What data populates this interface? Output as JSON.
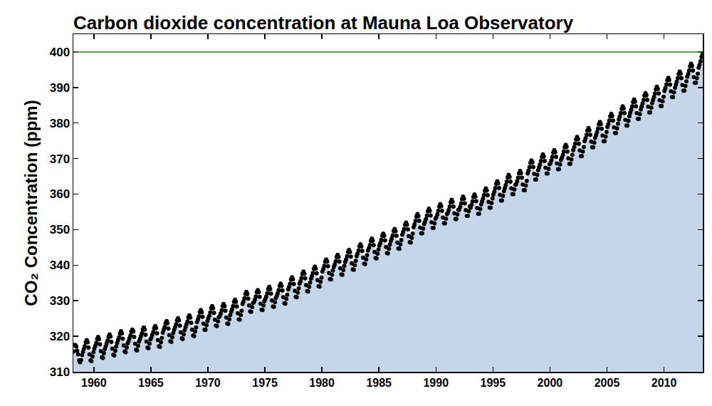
{
  "chart_data": {
    "type": "area",
    "title": "Carbon dioxide concentration at Mauna Loa Observatory",
    "y_label": "CO₂ Concentration (ppm)",
    "color": "#000000",
    "marker": "circle",
    "grid": false,
    "xlim": [
      1958.2,
      2013.4
    ],
    "ylim": [
      310,
      405
    ],
    "xticks": [
      1960,
      1965,
      1970,
      1975,
      1980,
      1985,
      1990,
      1995,
      2000,
      2005,
      2010
    ],
    "yticks": [
      310,
      320,
      330,
      340,
      350,
      360,
      370,
      380,
      390,
      400
    ],
    "hline": 400,
    "x": [
      1958.21,
      1958.29,
      1958.38,
      1958.46,
      1958.54,
      1958.62,
      1958.71,
      1958.79,
      1958.88,
      1958.96,
      1959.04,
      1959.12,
      1959.21,
      1959.29,
      1959.38,
      1959.46,
      1959.54,
      1959.62,
      1959.71,
      1959.79,
      1959.88,
      1959.96,
      1960.04,
      1960.12,
      1960.21,
      1960.29,
      1960.38,
      1960.46,
      1960.54,
      1960.62,
      1960.71,
      1960.79,
      1960.88,
      1960.96,
      1961.04,
      1961.12,
      1961.21,
      1961.29,
      1961.38,
      1961.46,
      1961.54,
      1961.62,
      1961.71,
      1961.79,
      1961.88,
      1961.96,
      1962.04,
      1962.12,
      1962.21,
      1962.29,
      1962.38,
      1962.46,
      1962.54,
      1962.62,
      1962.71,
      1962.79,
      1962.88,
      1962.96,
      1963.04,
      1963.12,
      1963.21,
      1963.29,
      1963.38,
      1963.46,
      1963.54,
      1963.62,
      1963.71,
      1963.79,
      1963.88,
      1963.96,
      1964.04,
      1964.12,
      1964.21,
      1964.29,
      1964.38,
      1964.46,
      1964.54,
      1964.62,
      1964.71,
      1964.79,
      1964.88,
      1964.96,
      1965.04,
      1965.12,
      1965.21,
      1965.29,
      1965.38,
      1965.46,
      1965.54,
      1965.62,
      1965.71,
      1965.79,
      1965.88,
      1965.96,
      1966.04,
      1966.12,
      1966.21,
      1966.29,
      1966.38,
      1966.46,
      1966.54,
      1966.62,
      1966.71,
      1966.79,
      1966.88,
      1966.96,
      1967.04,
      1967.12,
      1967.21,
      1967.29,
      1967.38,
      1967.46,
      1967.54,
      1967.62,
      1967.71,
      1967.79,
      1967.88,
      1967.96,
      1968.04,
      1968.12,
      1968.21,
      1968.29,
      1968.38,
      1968.46,
      1968.54,
      1968.62,
      1968.71,
      1968.79,
      1968.88,
      1968.96,
      1969.04,
      1969.12,
      1969.21,
      1969.29,
      1969.38,
      1969.46,
      1969.54,
      1969.62,
      1969.71,
      1969.79,
      1969.88,
      1969.96,
      1970.04,
      1970.12,
      1970.21,
      1970.29,
      1970.38,
      1970.46,
      1970.54,
      1970.62,
      1970.71,
      1970.79,
      1970.88,
      1970.96,
      1971.04,
      1971.12,
      1971.21,
      1971.29,
      1971.38,
      1971.46,
      1971.54,
      1971.62,
      1971.71,
      1971.79,
      1971.88,
      1971.96,
      1972.04,
      1972.12,
      1972.21,
      1972.29,
      1972.38,
      1972.46,
      1972.54,
      1972.62,
      1972.71,
      1972.79,
      1972.88,
      1972.96,
      1973.04,
      1973.12,
      1973.21,
      1973.29,
      1973.38,
      1973.46,
      1973.54,
      1973.62,
      1973.71,
      1973.79,
      1973.88,
      1973.96,
      1974.04,
      1974.12,
      1974.21,
      1974.29,
      1974.38,
      1974.46,
      1974.54,
      1974.62,
      1974.71,
      1974.79,
      1974.88,
      1974.96,
      1975.04,
      1975.12,
      1975.21,
      1975.29,
      1975.38,
      1975.46,
      1975.54,
      1975.62,
      1975.71,
      1975.79,
      1975.88,
      1975.96,
      1976.04,
      1976.12,
      1976.21,
      1976.29,
      1976.38,
      1976.46,
      1976.54,
      1976.62,
      1976.71,
      1976.79,
      1976.88,
      1976.96,
      1977.04,
      1977.12,
      1977.21,
      1977.29,
      1977.38,
      1977.46,
      1977.54,
      1977.62,
      1977.71,
      1977.79,
      1977.88,
      1977.96,
      1978.04,
      1978.12,
      1978.21,
      1978.29,
      1978.38,
      1978.46,
      1978.54,
      1978.62,
      1978.71,
      1978.79,
      1978.88,
      1978.96,
      1979.04,
      1979.12,
      1979.21,
      1979.29,
      1979.38,
      1979.46,
      1979.54,
      1979.62,
      1979.71,
      1979.79,
      1979.88,
      1979.96,
      1980.04,
      1980.12,
      1980.21,
      1980.29,
      1980.38,
      1980.46,
      1980.54,
      1980.62,
      1980.71,
      1980.79,
      1980.88,
      1980.96,
      1981.04,
      1981.12,
      1981.21,
      1981.29,
      1981.38,
      1981.46,
      1981.54,
      1981.62,
      1981.71,
      1981.79,
      1981.88,
      1981.96,
      1982.04,
      1982.12,
      1982.21,
      1982.29,
      1982.38,
      1982.46,
      1982.54,
      1982.62,
      1982.71,
      1982.79,
      1982.88,
      1982.96,
      1983.04,
      1983.12,
      1983.21,
      1983.29,
      1983.38,
      1983.46,
      1983.54,
      1983.62,
      1983.71,
      1983.79,
      1983.88,
      1983.96,
      1984.04,
      1984.12,
      1984.21,
      1984.29,
      1984.38,
      1984.46,
      1984.54,
      1984.62,
      1984.71,
      1984.79,
      1984.88,
      1984.96,
      1985.04,
      1985.12,
      1985.21,
      1985.29,
      1985.38,
      1985.46,
      1985.54,
      1985.62,
      1985.71,
      1985.79,
      1985.88,
      1985.96,
      1986.04,
      1986.12,
      1986.21,
      1986.29,
      1986.38,
      1986.46,
      1986.54,
      1986.62,
      1986.71,
      1986.79,
      1986.88,
      1986.96,
      1987.04,
      1987.12,
      1987.21,
      1987.29,
      1987.38,
      1987.46,
      1987.54,
      1987.62,
      1987.71,
      1987.79,
      1987.88,
      1987.96,
      1988.04,
      1988.12,
      1988.21,
      1988.29,
      1988.38,
      1988.46,
      1988.54,
      1988.62,
      1988.71,
      1988.79,
      1988.88,
      1988.96,
      1989.04,
      1989.12,
      1989.21,
      1989.29,
      1989.38,
      1989.46,
      1989.54,
      1989.62,
      1989.71,
      1989.79,
      1989.88,
      1989.96,
      1990.04,
      1990.12,
      1990.21,
      1990.29,
      1990.38,
      1990.46,
      1990.54,
      1990.62,
      1990.71,
      1990.79,
      1990.88,
      1990.96,
      1991.04,
      1991.12,
      1991.21,
      1991.29,
      1991.38,
      1991.46,
      1991.54,
      1991.62,
      1991.71,
      1991.79,
      1991.88,
      1991.96,
      1992.04,
      1992.12,
      1992.21,
      1992.29,
      1992.38,
      1992.46,
      1992.54,
      1992.62,
      1992.71,
      1992.79,
      1992.88,
      1992.96,
      1993.04,
      1993.12,
      1993.21,
      1993.29,
      1993.38,
      1993.46,
      1993.54,
      1993.62,
      1993.71,
      1993.79,
      1993.88,
      1993.96,
      1994.04,
      1994.12,
      1994.21,
      1994.29,
      1994.38,
      1994.46,
      1994.54,
      1994.62,
      1994.71,
      1994.79,
      1994.88,
      1994.96,
      1995.04,
      1995.12,
      1995.21,
      1995.29,
      1995.38,
      1995.46,
      1995.54,
      1995.62,
      1995.71,
      1995.79,
      1995.88,
      1995.96,
      1996.04,
      1996.12,
      1996.21,
      1996.29,
      1996.38,
      1996.46,
      1996.54,
      1996.62,
      1996.71,
      1996.79,
      1996.88,
      1996.96,
      1997.04,
      1997.12,
      1997.21,
      1997.29,
      1997.38,
      1997.46,
      1997.54,
      1997.62,
      1997.71,
      1997.79,
      1997.88,
      1997.96,
      1998.04,
      1998.12,
      1998.21,
      1998.29,
      1998.38,
      1998.46,
      1998.54,
      1998.62,
      1998.71,
      1998.79,
      1998.88,
      1998.96,
      1999.04,
      1999.12,
      1999.21,
      1999.29,
      1999.38,
      1999.46,
      1999.54,
      1999.62,
      1999.71,
      1999.79,
      1999.88,
      1999.96,
      2000.04,
      2000.12,
      2000.21,
      2000.29,
      2000.38,
      2000.46,
      2000.54,
      2000.62,
      2000.71,
      2000.79,
      2000.88,
      2000.96,
      2001.04,
      2001.12,
      2001.21,
      2001.29,
      2001.38,
      2001.46,
      2001.54,
      2001.62,
      2001.71,
      2001.79,
      2001.88,
      2001.96,
      2002.04,
      2002.12,
      2002.21,
      2002.29,
      2002.38,
      2002.46,
      2002.54,
      2002.62,
      2002.71,
      2002.79,
      2002.88,
      2002.96,
      2003.04,
      2003.12,
      2003.21,
      2003.29,
      2003.38,
      2003.46,
      2003.54,
      2003.62,
      2003.71,
      2003.79,
      2003.88,
      2003.96,
      2004.04,
      2004.12,
      2004.21,
      2004.29,
      2004.38,
      2004.46,
      2004.54,
      2004.62,
      2004.71,
      2004.79,
      2004.88,
      2004.96,
      2005.04,
      2005.12,
      2005.21,
      2005.29,
      2005.38,
      2005.46,
      2005.54,
      2005.62,
      2005.71,
      2005.79,
      2005.88,
      2005.96,
      2006.04,
      2006.12,
      2006.21,
      2006.29,
      2006.38,
      2006.46,
      2006.54,
      2006.62,
      2006.71,
      2006.79,
      2006.88,
      2006.96,
      2007.04,
      2007.12,
      2007.21,
      2007.29,
      2007.38,
      2007.46,
      2007.54,
      2007.62,
      2007.71,
      2007.79,
      2007.88,
      2007.96,
      2008.04,
      2008.12,
      2008.21,
      2008.29,
      2008.38,
      2008.46,
      2008.54,
      2008.62,
      2008.71,
      2008.79,
      2008.88,
      2008.96,
      2009.04,
      2009.12,
      2009.21,
      2009.29,
      2009.38,
      2009.46,
      2009.54,
      2009.62,
      2009.71,
      2009.79,
      2009.88,
      2009.96,
      2010.04,
      2010.12,
      2010.21,
      2010.29,
      2010.38,
      2010.46,
      2010.54,
      2010.62,
      2010.71,
      2010.79,
      2010.88,
      2010.96,
      2011.04,
      2011.12,
      2011.21,
      2011.29,
      2011.38,
      2011.46,
      2011.54,
      2011.62,
      2011.71,
      2011.79,
      2011.88,
      2011.96,
      2012.04,
      2012.12,
      2012.21,
      2012.29,
      2012.38,
      2012.46,
      2012.54,
      2012.62,
      2012.71,
      2012.79,
      2012.88,
      2012.96,
      2013.04,
      2013.12,
      2013.21,
      2013.29,
      2013.38
    ],
    "values": [
      315.7,
      317.5,
      317.5,
      317.1,
      315.9,
      314.9,
      313.2,
      312.7,
      313.3,
      314.7,
      315.6,
      316.4,
      317.2,
      318.3,
      318.9,
      318.3,
      316.8,
      314.9,
      313.2,
      313.0,
      314.3,
      315.5,
      316.5,
      317.3,
      318.1,
      319.2,
      319.8,
      319.2,
      317.7,
      315.8,
      314.1,
      313.9,
      315.2,
      316.4,
      317.2,
      318.0,
      318.8,
      319.9,
      320.5,
      319.9,
      318.4,
      316.5,
      314.8,
      314.6,
      315.9,
      317.1,
      318.1,
      318.9,
      319.7,
      320.8,
      321.4,
      320.8,
      319.3,
      317.4,
      315.7,
      315.5,
      316.8,
      318.0,
      318.6,
      319.4,
      320.2,
      321.3,
      321.9,
      321.3,
      319.8,
      317.9,
      316.2,
      316.0,
      317.3,
      318.5,
      319.2,
      320.0,
      320.8,
      321.9,
      322.5,
      321.9,
      320.4,
      318.5,
      316.8,
      316.6,
      317.9,
      319.1,
      319.6,
      320.4,
      321.2,
      322.3,
      322.9,
      322.3,
      320.8,
      318.9,
      317.2,
      317.0,
      318.3,
      319.5,
      321.0,
      321.8,
      322.6,
      323.7,
      324.3,
      323.7,
      322.2,
      320.3,
      318.6,
      318.4,
      319.7,
      320.9,
      321.8,
      322.6,
      323.4,
      324.5,
      325.1,
      324.5,
      323.0,
      321.1,
      319.4,
      319.2,
      320.5,
      321.7,
      322.6,
      323.4,
      324.2,
      325.3,
      325.9,
      325.3,
      323.8,
      321.9,
      320.2,
      320.0,
      321.3,
      322.5,
      324.0,
      324.7,
      325.6,
      326.8,
      327.4,
      326.8,
      325.5,
      323.6,
      321.9,
      321.8,
      323.1,
      324.3,
      325.1,
      325.8,
      326.7,
      327.9,
      328.5,
      327.9,
      326.6,
      324.7,
      323.0,
      322.9,
      324.2,
      325.4,
      325.7,
      326.4,
      327.3,
      328.5,
      329.1,
      328.5,
      327.2,
      325.3,
      323.6,
      323.5,
      324.8,
      326.0,
      326.9,
      327.6,
      328.5,
      329.7,
      330.3,
      329.7,
      328.4,
      326.5,
      324.8,
      324.7,
      326.0,
      327.2,
      329.1,
      329.8,
      330.7,
      331.9,
      332.5,
      331.9,
      330.6,
      328.7,
      327.0,
      326.9,
      328.2,
      329.4,
      329.6,
      330.3,
      331.2,
      332.4,
      333.0,
      332.4,
      331.1,
      329.2,
      327.5,
      327.4,
      328.7,
      329.9,
      330.5,
      331.2,
      332.1,
      333.3,
      333.9,
      333.3,
      332.0,
      330.1,
      328.4,
      328.3,
      329.6,
      330.8,
      331.4,
      332.1,
      333.0,
      334.2,
      334.8,
      334.2,
      332.9,
      331.0,
      329.3,
      329.2,
      330.5,
      331.7,
      333.2,
      333.9,
      334.8,
      336.0,
      336.6,
      336.0,
      334.7,
      332.8,
      331.1,
      331.0,
      332.3,
      333.5,
      334.8,
      335.5,
      336.4,
      337.6,
      338.2,
      337.6,
      336.3,
      334.4,
      332.7,
      332.6,
      333.9,
      335.1,
      336.2,
      336.9,
      337.8,
      339.0,
      339.6,
      339.0,
      337.7,
      335.8,
      334.1,
      334.0,
      335.3,
      336.5,
      338.2,
      338.9,
      339.8,
      341.0,
      341.6,
      341.0,
      339.7,
      337.8,
      336.1,
      336.0,
      337.3,
      338.5,
      339.5,
      340.2,
      341.1,
      342.3,
      342.9,
      342.3,
      341.0,
      339.1,
      337.4,
      337.3,
      338.6,
      339.8,
      340.9,
      341.6,
      342.5,
      343.7,
      344.3,
      343.7,
      342.4,
      340.5,
      338.8,
      338.7,
      340.0,
      341.2,
      342.5,
      343.2,
      344.1,
      345.3,
      345.9,
      345.3,
      344.0,
      342.1,
      340.4,
      340.3,
      341.6,
      342.8,
      344.1,
      344.8,
      345.7,
      346.9,
      347.5,
      346.9,
      345.6,
      343.7,
      342.0,
      341.9,
      343.2,
      344.4,
      345.5,
      346.2,
      347.1,
      348.3,
      348.9,
      348.3,
      347.0,
      345.1,
      343.4,
      343.3,
      344.6,
      345.8,
      346.8,
      347.5,
      348.4,
      349.6,
      350.2,
      349.6,
      348.3,
      346.4,
      344.7,
      344.6,
      345.9,
      347.1,
      348.6,
      349.3,
      350.2,
      351.4,
      352.0,
      351.4,
      350.1,
      348.2,
      346.5,
      346.4,
      347.7,
      348.9,
      350.7,
      351.5,
      352.5,
      353.7,
      354.4,
      353.8,
      352.5,
      350.6,
      349.0,
      349.0,
      350.3,
      351.6,
      352.2,
      353.0,
      354.0,
      355.2,
      355.9,
      355.3,
      354.0,
      352.1,
      350.5,
      350.5,
      351.8,
      353.1,
      353.5,
      354.3,
      355.3,
      356.5,
      357.2,
      356.6,
      355.3,
      353.4,
      351.8,
      351.8,
      353.1,
      354.4,
      354.7,
      355.5,
      356.5,
      357.7,
      358.4,
      357.8,
      356.5,
      354.6,
      353.0,
      353.0,
      354.3,
      355.6,
      355.6,
      356.4,
      357.4,
      358.6,
      359.3,
      358.7,
      357.4,
      355.5,
      353.9,
      353.9,
      355.2,
      356.5,
      356.2,
      357.0,
      358.0,
      359.2,
      359.9,
      359.3,
      358.0,
      356.1,
      354.5,
      354.5,
      355.8,
      357.1,
      357.9,
      358.7,
      359.7,
      360.9,
      361.6,
      361.0,
      359.7,
      357.8,
      356.2,
      356.2,
      357.5,
      358.8,
      359.9,
      360.7,
      361.7,
      362.9,
      363.6,
      363.0,
      361.7,
      359.8,
      358.2,
      358.2,
      359.5,
      360.8,
      361.7,
      362.5,
      363.5,
      364.7,
      365.4,
      364.8,
      363.5,
      361.6,
      360.0,
      360.0,
      361.3,
      362.6,
      362.8,
      363.6,
      364.6,
      365.8,
      366.5,
      365.9,
      364.6,
      362.7,
      361.1,
      361.1,
      362.4,
      363.7,
      365.8,
      366.6,
      367.6,
      368.8,
      369.5,
      368.9,
      367.6,
      365.7,
      364.1,
      364.1,
      365.4,
      366.7,
      367.5,
      368.3,
      369.3,
      370.5,
      371.2,
      370.6,
      369.3,
      367.4,
      365.8,
      365.8,
      367.1,
      368.4,
      368.7,
      369.5,
      370.5,
      371.7,
      372.4,
      371.8,
      370.5,
      368.6,
      367.0,
      367.0,
      368.3,
      369.6,
      370.2,
      371.0,
      372.0,
      373.2,
      373.9,
      373.3,
      372.0,
      370.1,
      368.5,
      368.5,
      369.8,
      371.1,
      372.4,
      373.2,
      374.2,
      375.4,
      376.1,
      375.5,
      374.2,
      372.3,
      370.7,
      370.7,
      372.0,
      373.3,
      374.9,
      375.7,
      376.7,
      377.9,
      378.6,
      378.0,
      376.7,
      374.8,
      373.2,
      373.2,
      374.5,
      375.8,
      376.6,
      377.4,
      378.4,
      379.6,
      380.3,
      379.7,
      378.4,
      376.5,
      374.9,
      374.9,
      376.2,
      377.5,
      378.9,
      379.7,
      380.7,
      381.9,
      382.6,
      382.0,
      380.7,
      378.8,
      377.2,
      377.2,
      378.5,
      379.8,
      381.0,
      381.8,
      382.8,
      384.0,
      384.7,
      384.1,
      382.8,
      380.9,
      379.3,
      379.3,
      380.6,
      381.9,
      382.9,
      383.7,
      384.7,
      385.9,
      386.6,
      386.0,
      384.7,
      382.8,
      381.2,
      381.2,
      382.5,
      383.8,
      384.7,
      385.5,
      386.5,
      387.7,
      388.4,
      387.8,
      386.5,
      384.6,
      383.0,
      383.0,
      384.3,
      385.6,
      386.5,
      387.3,
      388.3,
      389.5,
      390.2,
      389.6,
      388.3,
      386.4,
      384.8,
      384.8,
      386.1,
      387.4,
      389.0,
      389.8,
      390.8,
      392.0,
      392.7,
      392.1,
      390.8,
      388.9,
      387.3,
      387.3,
      388.6,
      389.9,
      390.8,
      391.6,
      392.6,
      393.8,
      394.5,
      393.9,
      392.6,
      390.7,
      389.1,
      389.1,
      390.4,
      391.7,
      393.0,
      393.8,
      394.8,
      396.0,
      396.7,
      396.1,
      394.8,
      392.9,
      391.3,
      391.3,
      392.6,
      393.9,
      395.6,
      396.4,
      397.4,
      398.6,
      399.3
    ]
  }
}
